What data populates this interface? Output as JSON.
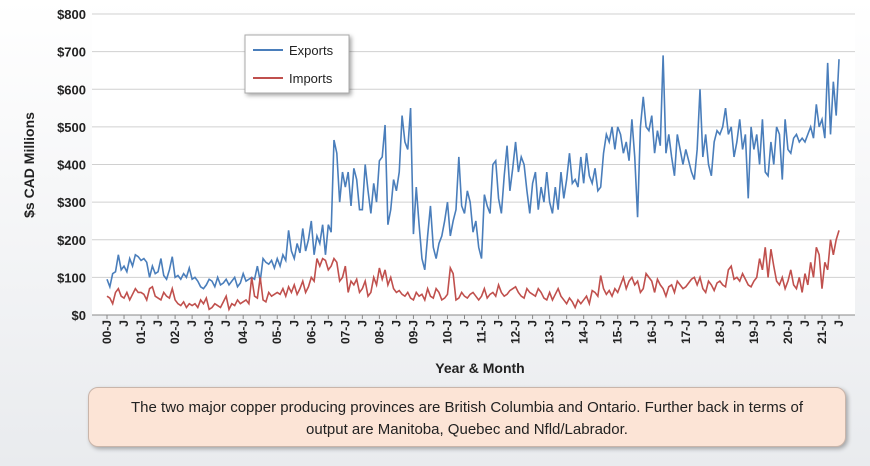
{
  "chart_data": {
    "type": "line",
    "y_label": "$s CAD Millions",
    "x_label": "Year & Month",
    "annotation": "The two major copper producing provinces are British Columbia and Ontario. Further back in terms of output are Manitoba, Quebec and Nfld/Labrador.",
    "ylim": [
      0,
      800
    ],
    "yticks": [
      {
        "value": 0,
        "label": "$0"
      },
      {
        "value": 100,
        "label": "$100"
      },
      {
        "value": 200,
        "label": "$200"
      },
      {
        "value": 300,
        "label": "$300"
      },
      {
        "value": 400,
        "label": "$400"
      },
      {
        "value": 500,
        "label": "$500"
      },
      {
        "value": 600,
        "label": "$600"
      },
      {
        "value": 700,
        "label": "$700"
      },
      {
        "value": 800,
        "label": "$800"
      }
    ],
    "grid": true,
    "legend": "upper left",
    "categories": [
      "00-J",
      null,
      null,
      null,
      null,
      null,
      "J",
      null,
      null,
      null,
      null,
      null,
      "01-J",
      null,
      null,
      null,
      null,
      null,
      "J",
      null,
      null,
      null,
      null,
      null,
      "02-J",
      null,
      null,
      null,
      null,
      null,
      "J",
      null,
      null,
      null,
      null,
      null,
      "03-J",
      null,
      null,
      null,
      null,
      null,
      "J",
      null,
      null,
      null,
      null,
      null,
      "04-J",
      null,
      null,
      null,
      null,
      null,
      "J",
      null,
      null,
      null,
      null,
      null,
      "05-J",
      null,
      null,
      null,
      null,
      null,
      "J",
      null,
      null,
      null,
      null,
      null,
      "06-J",
      null,
      null,
      null,
      null,
      null,
      "J",
      null,
      null,
      null,
      null,
      null,
      "07-J",
      null,
      null,
      null,
      null,
      null,
      "J",
      null,
      null,
      null,
      null,
      null,
      "08-J",
      null,
      null,
      null,
      null,
      null,
      "J",
      null,
      null,
      null,
      null,
      null,
      "09-J",
      null,
      null,
      null,
      null,
      null,
      "J",
      null,
      null,
      null,
      null,
      null,
      "10-J",
      null,
      null,
      null,
      null,
      null,
      "J",
      null,
      null,
      null,
      null,
      null,
      "11-J",
      null,
      null,
      null,
      null,
      null,
      "J",
      null,
      null,
      null,
      null,
      null,
      "12-J",
      null,
      null,
      null,
      null,
      null,
      "J",
      null,
      null,
      null,
      null,
      null,
      "13-J",
      null,
      null,
      null,
      null,
      null,
      "J",
      null,
      null,
      null,
      null,
      null,
      "14-J",
      null,
      null,
      null,
      null,
      null,
      "J",
      null,
      null,
      null,
      null,
      null,
      "15-J",
      null,
      null,
      null,
      null,
      null,
      "J",
      null,
      null,
      null,
      null,
      null,
      "16-J",
      null,
      null,
      null,
      null,
      null,
      "J",
      null,
      null,
      null,
      null,
      null,
      "17-J",
      null,
      null,
      null,
      null,
      null,
      "J",
      null,
      null,
      null,
      null,
      null,
      "18-J",
      null,
      null,
      null,
      null,
      null,
      "J",
      null,
      null,
      null,
      null,
      null,
      "19-J",
      null,
      null,
      null,
      null,
      null,
      "J",
      null,
      null,
      null,
      null,
      null,
      "20-J",
      null,
      null,
      null,
      null,
      null,
      "J",
      null,
      null,
      null,
      null,
      null,
      "21-J",
      null,
      null,
      null,
      null,
      null,
      "J"
    ],
    "series": [
      {
        "name": "Exports",
        "color": "#4a7ebb",
        "values": [
          95,
          75,
          110,
          115,
          160,
          120,
          130,
          115,
          150,
          130,
          160,
          155,
          145,
          150,
          140,
          100,
          130,
          110,
          115,
          150,
          105,
          95,
          120,
          155,
          100,
          105,
          95,
          110,
          100,
          125,
          95,
          100,
          90,
          75,
          70,
          80,
          95,
          90,
          75,
          100,
          80,
          85,
          95,
          80,
          90,
          100,
          75,
          85,
          110,
          90,
          95,
          100,
          95,
          130,
          90,
          150,
          140,
          135,
          145,
          125,
          150,
          130,
          160,
          145,
          225,
          170,
          150,
          190,
          165,
          230,
          170,
          200,
          250,
          160,
          210,
          190,
          240,
          160,
          240,
          220,
          465,
          430,
          300,
          380,
          340,
          380,
          290,
          390,
          360,
          280,
          280,
          400,
          330,
          270,
          350,
          300,
          410,
          420,
          505,
          240,
          280,
          360,
          330,
          380,
          530,
          460,
          440,
          550,
          215,
          340,
          240,
          150,
          120,
          210,
          290,
          180,
          150,
          190,
          210,
          250,
          300,
          210,
          250,
          280,
          420,
          290,
          270,
          330,
          300,
          220,
          250,
          180,
          150,
          320,
          290,
          270,
          400,
          410,
          310,
          270,
          370,
          450,
          330,
          390,
          460,
          380,
          420,
          400,
          330,
          270,
          350,
          380,
          280,
          340,
          300,
          380,
          300,
          270,
          340,
          280,
          380,
          310,
          360,
          430,
          350,
          360,
          340,
          420,
          350,
          430,
          370,
          350,
          390,
          330,
          340,
          430,
          480,
          460,
          500,
          440,
          500,
          480,
          430,
          460,
          410,
          520,
          420,
          260,
          500,
          580,
          500,
          490,
          530,
          430,
          490,
          450,
          690,
          430,
          480,
          420,
          370,
          480,
          440,
          400,
          440,
          410,
          380,
          360,
          440,
          600,
          420,
          480,
          400,
          370,
          460,
          490,
          480,
          500,
          550,
          480,
          500,
          420,
          460,
          520,
          440,
          480,
          310,
          500,
          440,
          480,
          400,
          520,
          380,
          370,
          460,
          400,
          500,
          480,
          360,
          520,
          440,
          430,
          470,
          480,
          460,
          470,
          460,
          480,
          500,
          470,
          560,
          500,
          520,
          470,
          670,
          480,
          620,
          530,
          680
        ]
      },
      {
        "name": "Imports",
        "color": "#c0504d",
        "values": [
          50,
          45,
          30,
          60,
          70,
          50,
          45,
          60,
          40,
          55,
          70,
          60,
          60,
          55,
          40,
          70,
          75,
          50,
          45,
          40,
          60,
          50,
          45,
          70,
          40,
          30,
          25,
          35,
          20,
          30,
          25,
          30,
          20,
          40,
          30,
          45,
          15,
          20,
          30,
          25,
          20,
          35,
          50,
          15,
          30,
          25,
          40,
          30,
          35,
          40,
          30,
          100,
          50,
          45,
          100,
          40,
          35,
          60,
          50,
          55,
          60,
          55,
          70,
          50,
          75,
          60,
          80,
          55,
          70,
          90,
          60,
          75,
          100,
          90,
          150,
          130,
          150,
          145,
          120,
          130,
          150,
          140,
          90,
          100,
          130,
          60,
          90,
          80,
          95,
          60,
          70,
          90,
          50,
          60,
          100,
          80,
          125,
          95,
          120,
          80,
          100,
          70,
          60,
          65,
          55,
          50,
          60,
          45,
          40,
          60,
          50,
          55,
          40,
          70,
          50,
          45,
          70,
          60,
          40,
          45,
          55,
          125,
          110,
          40,
          45,
          60,
          50,
          45,
          55,
          60,
          50,
          40,
          50,
          70,
          45,
          55,
          60,
          50,
          80,
          60,
          50,
          55,
          65,
          70,
          75,
          60,
          50,
          45,
          70,
          60,
          55,
          50,
          70,
          60,
          45,
          40,
          60,
          40,
          55,
          70,
          50,
          40,
          30,
          45,
          35,
          20,
          40,
          30,
          40,
          50,
          30,
          65,
          60,
          50,
          105,
          70,
          55,
          65,
          50,
          70,
          60,
          80,
          100,
          70,
          90,
          100,
          80,
          90,
          60,
          70,
          110,
          100,
          90,
          60,
          95,
          80,
          70,
          50,
          75,
          80,
          60,
          90,
          80,
          70,
          75,
          85,
          95,
          100,
          80,
          100,
          70,
          60,
          90,
          80,
          65,
          85,
          90,
          80,
          75,
          120,
          130,
          95,
          100,
          90,
          110,
          95,
          80,
          75,
          90,
          100,
          150,
          120,
          180,
          100,
          175,
          130,
          90,
          80,
          100,
          70,
          90,
          120,
          80,
          70,
          100,
          60,
          110,
          80,
          140,
          100,
          180,
          160,
          70,
          140,
          120,
          200,
          160,
          200,
          225
        ]
      }
    ]
  }
}
